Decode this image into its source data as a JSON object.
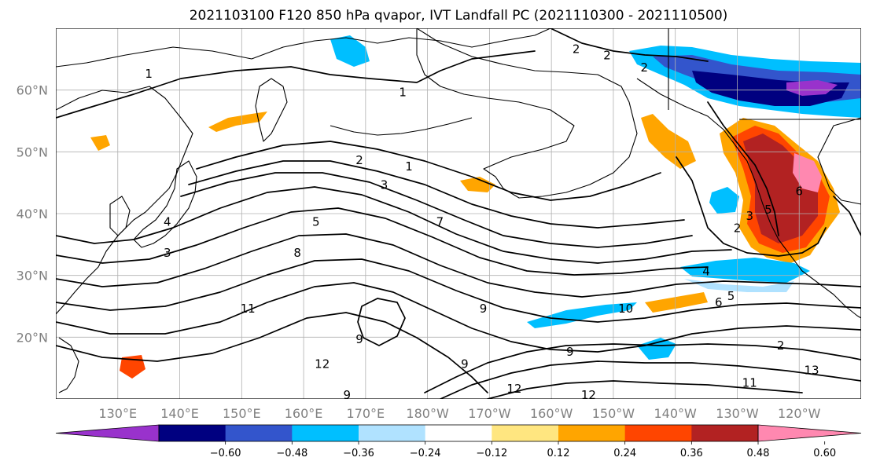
{
  "title": "2021103100 F120 850 hPa qvapor, IVT Landfall PC (2021110300 - 2021110500)",
  "map": {
    "lon_range": [
      120,
      250
    ],
    "lat_range": [
      10,
      70
    ],
    "lat_ticks": [
      {
        "lat": 20,
        "label": "20°N"
      },
      {
        "lat": 30,
        "label": "30°N"
      },
      {
        "lat": 40,
        "label": "40°N"
      },
      {
        "lat": 50,
        "label": "50°N"
      },
      {
        "lat": 60,
        "label": "60°N"
      }
    ],
    "lon_ticks": [
      {
        "lon": 130,
        "label": "130°E"
      },
      {
        "lon": 140,
        "label": "140°E"
      },
      {
        "lon": 150,
        "label": "150°E"
      },
      {
        "lon": 160,
        "label": "160°E"
      },
      {
        "lon": 170,
        "label": "170°E"
      },
      {
        "lon": 180,
        "label": "180°W"
      },
      {
        "lon": 190,
        "label": "170°W"
      },
      {
        "lon": 200,
        "label": "160°W"
      },
      {
        "lon": 210,
        "label": "150°W"
      },
      {
        "lon": 220,
        "label": "140°W"
      },
      {
        "lon": 230,
        "label": "130°W"
      },
      {
        "lon": 240,
        "label": "120°W"
      }
    ],
    "grid": true
  },
  "colorbar": {
    "levels": [
      "−0.60",
      "−0.48",
      "−0.36",
      "−0.24",
      "−0.12",
      "0.12",
      "0.24",
      "0.36",
      "0.48",
      "0.60"
    ],
    "colors": [
      "#9932cc",
      "#000080",
      "#3355cc",
      "#00bfff",
      "#b0e2ff",
      "#ffffff",
      "#ffe680",
      "#ffa500",
      "#ff4500",
      "#b22222",
      "#ff88b0"
    ],
    "extend": "both"
  },
  "contour_labels": [
    {
      "text": "1",
      "lon": 176,
      "lat": 59
    },
    {
      "text": "1",
      "lon": 177,
      "lat": 47
    },
    {
      "text": "1",
      "lon": 135,
      "lat": 62
    },
    {
      "text": "2",
      "lon": 169,
      "lat": 48
    },
    {
      "text": "2",
      "lon": 204,
      "lat": 66
    },
    {
      "text": "2",
      "lon": 209,
      "lat": 65
    },
    {
      "text": "2",
      "lon": 215,
      "lat": 63
    },
    {
      "text": "2",
      "lon": 230,
      "lat": 37
    },
    {
      "text": "2",
      "lon": 237,
      "lat": 18
    },
    {
      "text": "3",
      "lon": 173,
      "lat": 44
    },
    {
      "text": "3",
      "lon": 138,
      "lat": 33
    },
    {
      "text": "3",
      "lon": 232,
      "lat": 39
    },
    {
      "text": "4",
      "lon": 138,
      "lat": 38
    },
    {
      "text": "4",
      "lon": 225,
      "lat": 30
    },
    {
      "text": "5",
      "lon": 162,
      "lat": 38
    },
    {
      "text": "5",
      "lon": 235,
      "lat": 40
    },
    {
      "text": "5",
      "lon": 229,
      "lat": 26
    },
    {
      "text": "6",
      "lon": 227,
      "lat": 25
    },
    {
      "text": "6",
      "lon": 240,
      "lat": 43
    },
    {
      "text": "7",
      "lon": 182,
      "lat": 38
    },
    {
      "text": "8",
      "lon": 159,
      "lat": 33
    },
    {
      "text": "9",
      "lon": 169,
      "lat": 19
    },
    {
      "text": "9",
      "lon": 186,
      "lat": 15
    },
    {
      "text": "9",
      "lon": 189,
      "lat": 24
    },
    {
      "text": "9",
      "lon": 203,
      "lat": 17
    },
    {
      "text": "10",
      "lon": 212,
      "lat": 24
    },
    {
      "text": "11",
      "lon": 151,
      "lat": 24
    },
    {
      "text": "11",
      "lon": 232,
      "lat": 12
    },
    {
      "text": "12",
      "lon": 163,
      "lat": 15
    },
    {
      "text": "12",
      "lon": 194,
      "lat": 11
    },
    {
      "text": "12",
      "lon": 206,
      "lat": 10
    },
    {
      "text": "13",
      "lon": 242,
      "lat": 14
    },
    {
      "text": "9",
      "lon": 167,
      "lat": 10
    }
  ]
}
